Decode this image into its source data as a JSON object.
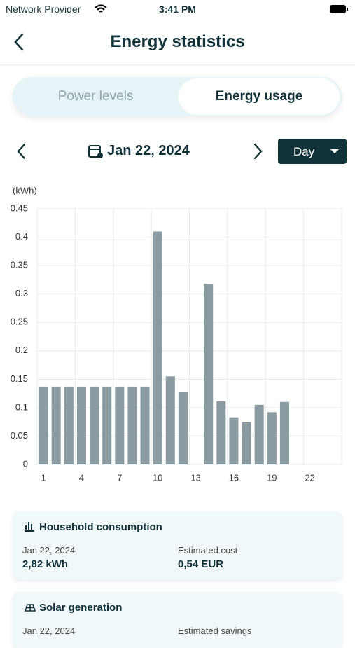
{
  "status_bar": {
    "carrier": "Network Provider",
    "time": "3:41 PM"
  },
  "header": {
    "title": "Energy statistics"
  },
  "tabs": [
    "Power levels",
    "Energy usage"
  ],
  "date_nav": {
    "date": "Jan 22, 2024",
    "period": "Day"
  },
  "chart_data": {
    "type": "bar",
    "y_label": "(kWh)",
    "categories": [
      "1",
      null,
      null,
      "4",
      null,
      null,
      "7",
      null,
      null,
      "10",
      null,
      null,
      "13",
      null,
      null,
      "16",
      null,
      null,
      "19",
      null,
      null,
      "22",
      null,
      null
    ],
    "values": [
      0.137,
      0.137,
      0.137,
      0.137,
      0.137,
      0.137,
      0.137,
      0.137,
      0.137,
      0.41,
      0.155,
      0.127,
      0,
      0.318,
      0.111,
      0.083,
      0.075,
      0.105,
      0.092,
      0.11,
      null,
      null,
      null,
      null
    ],
    "color": "#8a9ba1",
    "ylim": [
      0,
      0.45
    ],
    "yticks": [
      0,
      0.05,
      0.1,
      0.15,
      0.2,
      0.25,
      0.3,
      0.35,
      0.4,
      0.45
    ],
    "grid": true
  },
  "cards": [
    {
      "title": "Household consumption",
      "date": "Jan 22, 2024",
      "value": "2,82 kWh",
      "cost_label": "Estimated cost",
      "cost": "0,54 EUR"
    },
    {
      "title": "Solar generation",
      "date": "Jan 22, 2024",
      "cost_label": "Estimated savings"
    }
  ]
}
